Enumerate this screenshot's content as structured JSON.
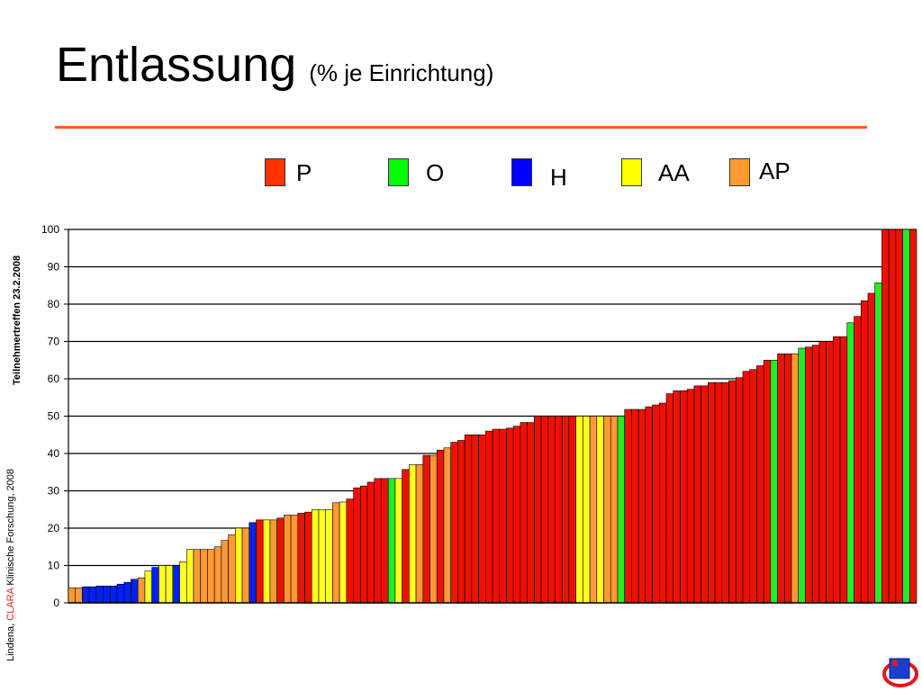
{
  "header": {
    "title": "Entlassung",
    "subtitle": "(% je Einrichtung)"
  },
  "legend": [
    {
      "key": "P",
      "label": "P",
      "color": "#ff3300"
    },
    {
      "key": "O",
      "label": "O",
      "color": "#00ff00"
    },
    {
      "key": "H",
      "label": "H",
      "color": "#0000ff"
    },
    {
      "key": "AA",
      "label": "AA",
      "color": "#ffff00"
    },
    {
      "key": "AP",
      "label": "AP",
      "color": "#ff9933"
    }
  ],
  "footer": {
    "source_prefix": "Lindena, ",
    "source_brand": "CLARA",
    "source_suffix": " Klinische Forschung, 2008",
    "event": "Teilnehmertreffen 23.2.2008"
  },
  "colors": {
    "rule": "#ff5a22",
    "P": "#ee1100",
    "O": "#22ee22",
    "H": "#0022ee",
    "AA": "#ffff22",
    "AP": "#ff9933",
    "grid": "#000000"
  },
  "chart_data": {
    "type": "bar",
    "ylim": [
      0,
      100
    ],
    "yticks": [
      0,
      10,
      20,
      30,
      40,
      50,
      60,
      70,
      80,
      90,
      100
    ],
    "grid": true,
    "xlabel": "",
    "ylabel": "",
    "values": [
      4,
      4,
      4.3,
      4.3,
      4.5,
      4.5,
      4.5,
      5,
      5.5,
      6.3,
      6.7,
      8.5,
      9.5,
      10,
      10,
      10,
      11,
      14.3,
      14.3,
      14.3,
      14.3,
      15,
      16.7,
      18.2,
      20,
      20,
      21.5,
      22.2,
      22.2,
      22.2,
      22.7,
      23.5,
      23.5,
      24,
      24.3,
      25,
      25,
      25,
      26.8,
      27,
      27.8,
      30.8,
      31.3,
      32.3,
      33.3,
      33.3,
      33.3,
      33.3,
      35.7,
      37,
      37,
      39.5,
      39.5,
      40.9,
      41.5,
      43,
      43.5,
      45,
      45,
      45,
      46,
      46.5,
      46.5,
      46.8,
      47.3,
      48.3,
      48.3,
      50,
      50,
      50,
      50,
      50,
      50,
      50,
      50,
      50,
      50,
      50,
      50,
      50,
      51.8,
      51.8,
      51.8,
      52.5,
      53,
      53.5,
      56,
      56.8,
      56.8,
      57.2,
      58.1,
      58.1,
      59,
      59,
      59,
      59.5,
      60.3,
      62,
      62.5,
      63.5,
      65,
      65,
      66.7,
      66.7,
      66.7,
      68.2,
      68.5,
      69,
      70,
      70,
      71.3,
      71.3,
      75,
      76.7,
      80.9,
      82.9,
      85.7,
      100,
      100,
      100,
      100,
      100
    ],
    "groups": [
      "AP",
      "AP",
      "H",
      "H",
      "H",
      "H",
      "H",
      "H",
      "H",
      "H",
      "AP",
      "AA",
      "H",
      "AA",
      "AA",
      "H",
      "AA",
      "AA",
      "AP",
      "AP",
      "AP",
      "AP",
      "AP",
      "AP",
      "AA",
      "AP",
      "H",
      "P",
      "AA",
      "AP",
      "P",
      "AP",
      "AP",
      "P",
      "P",
      "AA",
      "AA",
      "AA",
      "AP",
      "AA",
      "P",
      "P",
      "P",
      "P",
      "P",
      "P",
      "O",
      "AA",
      "P",
      "AA",
      "AP",
      "P",
      "AP",
      "P",
      "AP",
      "P",
      "P",
      "P",
      "P",
      "P",
      "P",
      "P",
      "P",
      "P",
      "P",
      "P",
      "P",
      "P",
      "P",
      "P",
      "P",
      "P",
      "P",
      "AA",
      "AA",
      "AP",
      "AA",
      "AP",
      "AP",
      "O",
      "P",
      "P",
      "P",
      "P",
      "P",
      "P",
      "P",
      "P",
      "P",
      "P",
      "P",
      "P",
      "P",
      "P",
      "P",
      "P",
      "P",
      "P",
      "P",
      "P",
      "P",
      "O",
      "P",
      "P",
      "AP",
      "O",
      "P",
      "P",
      "P",
      "P",
      "P",
      "P",
      "O",
      "P",
      "P",
      "P",
      "O",
      "P",
      "P",
      "P",
      "O",
      "P"
    ]
  }
}
